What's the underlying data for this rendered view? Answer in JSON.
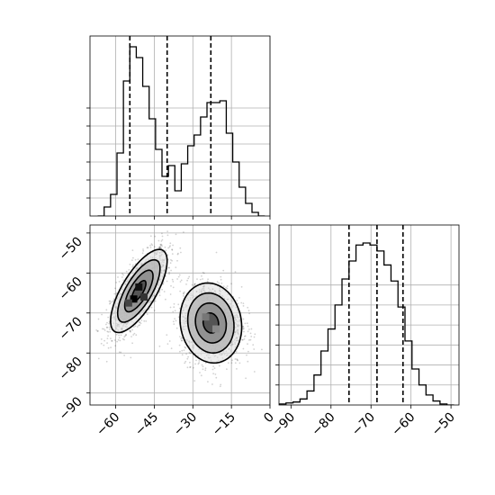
{
  "chart_data": [
    {
      "type": "histogram",
      "panel": "top-left",
      "parameter_index": 0,
      "xlim": [
        -70,
        0
      ],
      "bin_edges": [
        -67,
        -64.5,
        -62,
        -59.5,
        -57,
        -54.5,
        -52,
        -49.5,
        -47,
        -44.5,
        -42,
        -39.5,
        -37,
        -34.5,
        -32,
        -29.5,
        -27,
        -24.5,
        -22,
        -19.5,
        -17,
        -14.5,
        -12,
        -9.5,
        -7,
        -4.5,
        -2
      ],
      "counts": [
        0.0,
        0.5,
        1.2,
        3.5,
        7.5,
        9.4,
        8.8,
        7.2,
        5.4,
        3.7,
        2.2,
        2.8,
        1.4,
        2.9,
        3.9,
        4.5,
        5.5,
        6.3,
        6.3,
        6.4,
        4.6,
        3.0,
        1.6,
        0.7,
        0.2,
        0.0
      ],
      "quantiles": [
        -54.5,
        -40,
        -23
      ],
      "y_tick_values": [
        1,
        2,
        3,
        4,
        5,
        6
      ],
      "ylim": [
        0,
        10
      ],
      "grid": true
    },
    {
      "type": "histogram",
      "panel": "bottom-right",
      "parameter_index": 1,
      "xlim": [
        -93,
        -48
      ],
      "bin_edges": [
        -93,
        -91.25,
        -89.5,
        -87.75,
        -86,
        -84.25,
        -82.5,
        -80.75,
        -79,
        -77.25,
        -75.5,
        -73.75,
        -72,
        -70.25,
        -68.5,
        -66.75,
        -65,
        -63.25,
        -61.5,
        -59.75,
        -58,
        -56.25,
        -54.5,
        -52.75,
        -51,
        -49.25
      ],
      "counts": [
        0.05,
        0.1,
        0.15,
        0.3,
        0.7,
        1.5,
        2.7,
        3.8,
        5.0,
        6.3,
        7.2,
        8.0,
        8.1,
        8.0,
        7.7,
        7.0,
        6.2,
        4.9,
        3.2,
        1.8,
        1.0,
        0.5,
        0.2,
        0.05,
        0.0
      ],
      "quantiles": [
        -75.5,
        -68.5,
        -62
      ],
      "x_tick_labels": [
        "−90",
        "−80",
        "−70",
        "−60",
        "−50"
      ],
      "x_tick_values": [
        -90,
        -80,
        -70,
        -60,
        -50
      ],
      "y_tick_values": [
        1,
        2,
        3,
        4,
        5,
        6
      ],
      "ylim": [
        0,
        9
      ],
      "grid": true
    },
    {
      "type": "scatter-density",
      "panel": "bottom-left",
      "xlim": [
        -70,
        0
      ],
      "ylim": [
        -93,
        -48
      ],
      "x_tick_labels": [
        "−60",
        "−45",
        "−30",
        "−15",
        "0"
      ],
      "x_tick_values": [
        -60,
        -45,
        -30,
        -15,
        0
      ],
      "y_tick_labels": [
        "−50",
        "−60",
        "−70",
        "−80",
        "−90"
      ],
      "y_tick_values": [
        -50,
        -60,
        -70,
        -80,
        -90
      ],
      "clusters": [
        {
          "center": [
            -51,
            -64.5
          ],
          "std": [
            5.5,
            5.2
          ],
          "correlation": 0.72,
          "weight": 0.5
        },
        {
          "center": [
            -23,
            -72.5
          ],
          "std": [
            6.0,
            5.0
          ],
          "correlation": -0.1,
          "weight": 0.5
        }
      ],
      "contour_sigma_levels": [
        0.5,
        1.0,
        1.5,
        2.0
      ],
      "grid": true
    }
  ]
}
